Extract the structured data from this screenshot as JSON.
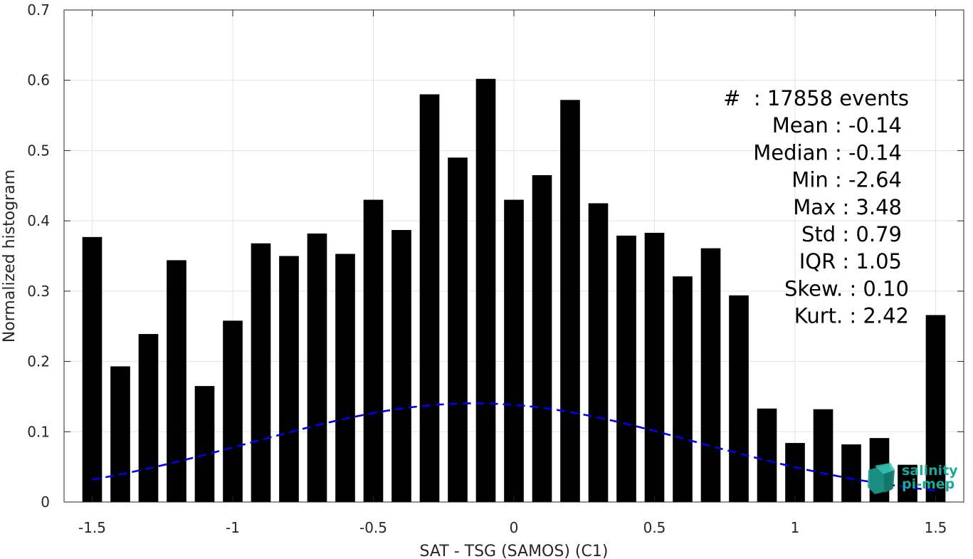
{
  "chart_data": {
    "type": "bar",
    "xlabel": "SAT - TSG (SAMOS) (C1)",
    "ylabel": "Normalized histogram",
    "xlim": [
      -1.6,
      1.6
    ],
    "ylim": [
      0,
      0.7
    ],
    "grid": true,
    "x_ticks": [
      -1.5,
      -1,
      -0.5,
      0,
      0.5,
      1,
      1.5
    ],
    "x_tick_labels": [
      "-1.5",
      "-1",
      "-0.5",
      "0",
      "0.5",
      "1",
      "1.5"
    ],
    "y_ticks": [
      0,
      0.1,
      0.2,
      0.3,
      0.4,
      0.5,
      0.6,
      0.7
    ],
    "y_tick_labels": [
      "0",
      "0.1",
      "0.2",
      "0.3",
      "0.4",
      "0.5",
      "0.6",
      "0.7"
    ],
    "bar_color": "#000000",
    "x": [
      -1.5,
      -1.4,
      -1.3,
      -1.2,
      -1.1,
      -1.0,
      -0.9,
      -0.8,
      -0.7,
      -0.6,
      -0.5,
      -0.4,
      -0.3,
      -0.2,
      -0.1,
      0.0,
      0.1,
      0.2,
      0.3,
      0.4,
      0.5,
      0.6,
      0.7,
      0.8,
      0.9,
      1.0,
      1.1,
      1.2,
      1.3,
      1.4,
      1.5
    ],
    "values": [
      0.377,
      0.193,
      0.239,
      0.344,
      0.165,
      0.258,
      0.368,
      0.35,
      0.382,
      0.353,
      0.43,
      0.387,
      0.58,
      0.49,
      0.602,
      0.43,
      0.465,
      0.572,
      0.425,
      0.379,
      0.383,
      0.321,
      0.361,
      0.294,
      0.133,
      0.084,
      0.132,
      0.082,
      0.091,
      0.053,
      0.266
    ],
    "fit_curve": {
      "style": "dashed",
      "color": "#0000ee",
      "mean": -0.14,
      "std": 0.79,
      "x_range": [
        -1.5,
        1.5
      ]
    },
    "annotations": [
      "#  : 17858 events",
      "Mean : -0.14",
      "Median : -0.14",
      "Min : -2.64",
      "Max : 3.48",
      "Std : 0.79",
      "IQR : 1.05",
      "Skew. : 0.10",
      "Kurt. : 2.42"
    ]
  },
  "logo": {
    "line1": "salinity",
    "line2": "pi-mep",
    "color": "#19a89a"
  }
}
